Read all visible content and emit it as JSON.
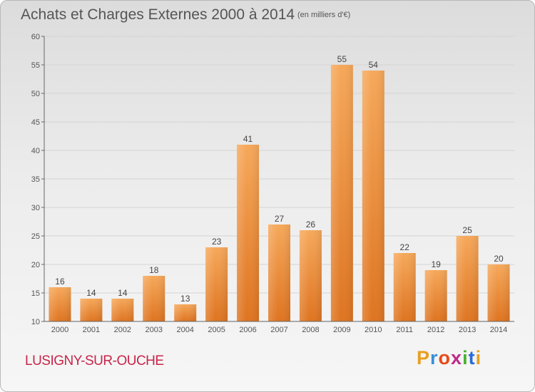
{
  "header": {
    "title": "Achats et Charges Externes 2000 à 2014",
    "subtitle": "(en milliers d'€)"
  },
  "footer": {
    "location": "LUSIGNY-SUR-OUCHE",
    "logo_text": "Proxiti",
    "logo_colors": [
      "#e8a020",
      "#3a8fd8",
      "#e84a1a",
      "#c02a8a",
      "#4ab030",
      "#2a6ad8",
      "#e8a020"
    ]
  },
  "colors": {
    "bar_top": "#f6a85a",
    "bar_bottom": "#de7420",
    "grid": "#d4d4d4",
    "axis": "#666666"
  },
  "chart_data": {
    "type": "bar",
    "title": "Achats et Charges Externes 2000 à 2014",
    "subtitle": "(en milliers d'€)",
    "categories": [
      "2000",
      "2001",
      "2002",
      "2003",
      "2004",
      "2005",
      "2006",
      "2007",
      "2008",
      "2009",
      "2010",
      "2011",
      "2012",
      "2013",
      "2014"
    ],
    "values": [
      16,
      14,
      14,
      18,
      13,
      23,
      41,
      27,
      26,
      55,
      54,
      22,
      19,
      25,
      20
    ],
    "ylim": [
      10,
      60
    ],
    "yticks": [
      10,
      15,
      20,
      25,
      30,
      35,
      40,
      45,
      50,
      55,
      60
    ],
    "grid": true,
    "data_labels": true
  }
}
